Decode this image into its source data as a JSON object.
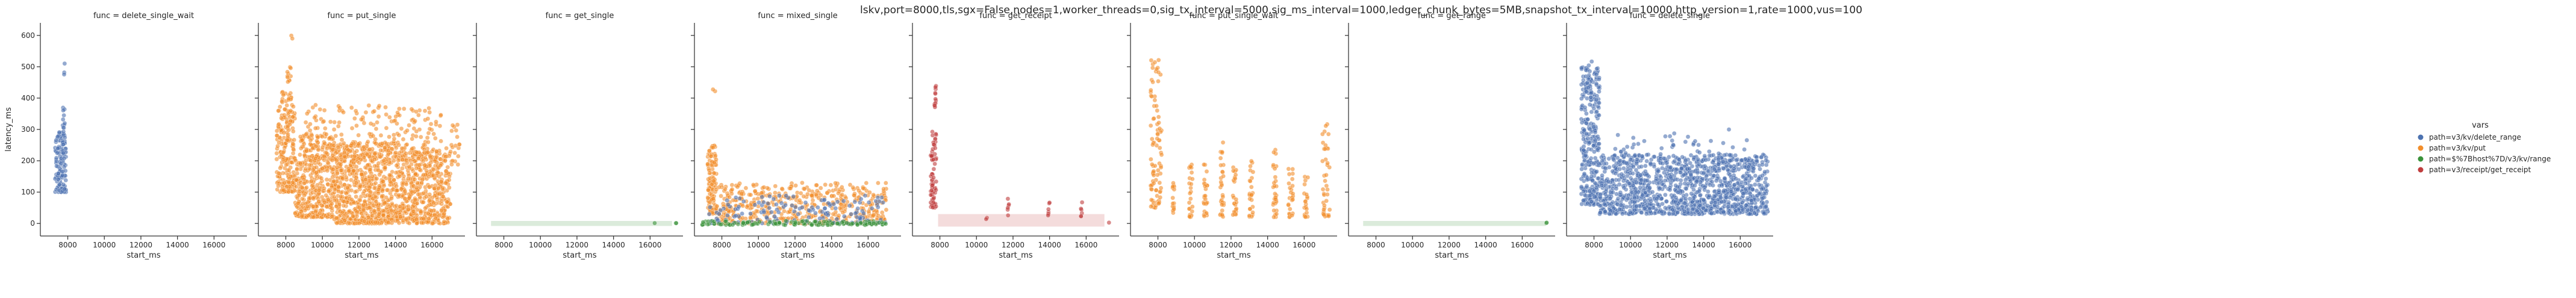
{
  "figure": {
    "suptitle": "lskv,port=8000,tls,sgx=False,nodes=1,worker_threads=0,sig_tx_interval=5000,sig_ms_interval=1000,ledger_chunk_bytes=5MB,snapshot_tx_interval=10000,http_version=1,rate=1000,vus=100"
  },
  "legend": {
    "title": "vars",
    "placement": "right",
    "entries": [
      {
        "label": "path=v3/kv/delete_range",
        "color": "#4c72b0"
      },
      {
        "label": "path=v3/kv/put",
        "color": "#f28e2b"
      },
      {
        "label": "path=$%7Bhost%7D/v3/kv/range",
        "color": "#3a923a"
      },
      {
        "label": "path=v3/receipt/get_receipt",
        "color": "#c03d3e"
      }
    ]
  },
  "chart_data": [
    {
      "type": "scatter",
      "title": "func = delete_single_wait",
      "xlabel": "start_ms",
      "ylabel": "latency_ms",
      "xlim": [
        6500,
        17800
      ],
      "ylim": [
        -40,
        640
      ],
      "xticks": [
        8000,
        10000,
        12000,
        14000,
        16000
      ],
      "yticks": [
        0,
        100,
        200,
        300,
        400,
        500,
        600
      ],
      "series": [
        {
          "color": "#4c72b0",
          "clusters": [
            {
              "x": [
                7300,
                7900
              ],
              "y": [
                100,
                300
              ],
              "n": 120
            },
            {
              "x": [
                7700,
                7850
              ],
              "y": [
                250,
                390
              ],
              "n": 25
            },
            {
              "x": [
                7780,
                7840
              ],
              "y": [
                470,
                520
              ],
              "n": 3
            }
          ]
        }
      ]
    },
    {
      "type": "scatter",
      "title": "func = put_single",
      "xlabel": "start_ms",
      "ylabel": "",
      "xlim": [
        6500,
        17800
      ],
      "ylim": [
        -40,
        640
      ],
      "xticks": [
        8000,
        10000,
        12000,
        14000,
        16000
      ],
      "yticks": [
        0,
        100,
        200,
        300,
        400,
        500,
        600
      ],
      "series": [
        {
          "color": "#f28e2b",
          "clusters": [
            {
              "x": [
                7500,
                8500
              ],
              "y": [
                100,
                420
              ],
              "n": 220
            },
            {
              "x": [
                8000,
                8300
              ],
              "y": [
                450,
                500
              ],
              "n": 10
            },
            {
              "x": [
                8300,
                8400
              ],
              "y": [
                590,
                610
              ],
              "n": 2
            },
            {
              "x": [
                8500,
                10500
              ],
              "y": [
                20,
                280
              ],
              "n": 350
            },
            {
              "x": [
                10500,
                14000
              ],
              "y": [
                0,
                260
              ],
              "n": 700
            },
            {
              "x": [
                9000,
                16500
              ],
              "y": [
                200,
                380
              ],
              "n": 260
            },
            {
              "x": [
                14000,
                17000
              ],
              "y": [
                0,
                240
              ],
              "n": 500
            },
            {
              "x": [
                17000,
                17500
              ],
              "y": [
                180,
                320
              ],
              "n": 20
            }
          ]
        }
      ]
    },
    {
      "type": "scatter",
      "title": "func = get_single",
      "xlabel": "start_ms",
      "ylabel": "",
      "xlim": [
        6500,
        17800
      ],
      "ylim": [
        -40,
        640
      ],
      "xticks": [
        8000,
        10000,
        12000,
        14000,
        16000
      ],
      "yticks": [
        0,
        100,
        200,
        300,
        400,
        500,
        600
      ],
      "series": [
        {
          "color": "#3a923a",
          "clusters": [
            {
              "x": [
                16200,
                16300
              ],
              "y": [
                0,
                2
              ],
              "n": 1
            },
            {
              "x": [
                17400,
                17500
              ],
              "y": [
                0,
                2
              ],
              "n": 2
            }
          ]
        }
      ],
      "band": {
        "color": "#3a923a",
        "x": [
          7300,
          17200
        ],
        "y": [
          -8,
          8
        ]
      }
    },
    {
      "type": "scatter",
      "title": "func = mixed_single",
      "xlabel": "start_ms",
      "ylabel": "",
      "xlim": [
        6500,
        17800
      ],
      "ylim": [
        -40,
        640
      ],
      "xticks": [
        8000,
        10000,
        12000,
        14000,
        16000
      ],
      "yticks": [
        0,
        100,
        200,
        300,
        400,
        500,
        600
      ],
      "series": [
        {
          "color": "#f28e2b",
          "clusters": [
            {
              "x": [
                7200,
                7700
              ],
              "y": [
                30,
                250
              ],
              "n": 120
            },
            {
              "x": [
                7500,
                7700
              ],
              "y": [
                400,
                470
              ],
              "n": 2
            },
            {
              "x": [
                7700,
                17000
              ],
              "y": [
                0,
                130
              ],
              "n": 500
            }
          ]
        },
        {
          "color": "#4c72b0",
          "clusters": [
            {
              "x": [
                7200,
                17000
              ],
              "y": [
                0,
                90
              ],
              "n": 160
            }
          ]
        },
        {
          "color": "#3a923a",
          "clusters": [
            {
              "x": [
                6900,
                17000
              ],
              "y": [
                -5,
                8
              ],
              "n": 130
            }
          ]
        }
      ]
    },
    {
      "type": "scatter",
      "title": "func = get_receipt",
      "xlabel": "start_ms",
      "ylabel": "",
      "xlim": [
        6500,
        17800
      ],
      "ylim": [
        -40,
        640
      ],
      "xticks": [
        8000,
        10000,
        12000,
        14000,
        16000
      ],
      "yticks": [
        0,
        100,
        200,
        300,
        400,
        500,
        600
      ],
      "series": [
        {
          "color": "#c03d3e",
          "clusters": [
            {
              "x": [
                7500,
                7800
              ],
              "y": [
                50,
                300
              ],
              "n": 70
            },
            {
              "x": [
                7700,
                7800
              ],
              "y": [
                370,
                440
              ],
              "n": 12
            },
            {
              "x": [
                10500,
                10600
              ],
              "y": [
                10,
                20
              ],
              "n": 2
            },
            {
              "x": [
                11700,
                11800
              ],
              "y": [
                20,
                80
              ],
              "n": 6
            },
            {
              "x": [
                13900,
                14000
              ],
              "y": [
                20,
                70
              ],
              "n": 6
            },
            {
              "x": [
                15700,
                15800
              ],
              "y": [
                20,
                70
              ],
              "n": 6
            },
            {
              "x": [
                17200,
                17300
              ],
              "y": [
                0,
                5
              ],
              "n": 1
            }
          ]
        }
      ],
      "band": {
        "color": "#c03d3e",
        "x": [
          7900,
          17000
        ],
        "y": [
          -10,
          30
        ]
      }
    },
    {
      "type": "scatter",
      "title": "func = put_single_wait",
      "xlabel": "start_ms",
      "ylabel": "",
      "xlim": [
        6500,
        17800
      ],
      "ylim": [
        -40,
        640
      ],
      "xticks": [
        8000,
        10000,
        12000,
        14000,
        16000
      ],
      "yticks": [
        0,
        100,
        200,
        300,
        400,
        500,
        600
      ],
      "series": [
        {
          "color": "#f28e2b",
          "clusters": [
            {
              "x": [
                7600,
                8200
              ],
              "y": [
                50,
                540
              ],
              "n": 90
            },
            {
              "x": [
                8800,
                8900
              ],
              "y": [
                20,
                140
              ],
              "n": 15
            },
            {
              "x": [
                9700,
                9900
              ],
              "y": [
                20,
                210
              ],
              "n": 25
            },
            {
              "x": [
                10500,
                10700
              ],
              "y": [
                20,
                200
              ],
              "n": 25
            },
            {
              "x": [
                11400,
                11600
              ],
              "y": [
                20,
                280
              ],
              "n": 30
            },
            {
              "x": [
                12100,
                12300
              ],
              "y": [
                20,
                200
              ],
              "n": 25
            },
            {
              "x": [
                13000,
                13200
              ],
              "y": [
                20,
                200
              ],
              "n": 25
            },
            {
              "x": [
                14300,
                14500
              ],
              "y": [
                20,
                270
              ],
              "n": 30
            },
            {
              "x": [
                15100,
                15400
              ],
              "y": [
                20,
                200
              ],
              "n": 25
            },
            {
              "x": [
                16000,
                16200
              ],
              "y": [
                20,
                170
              ],
              "n": 20
            },
            {
              "x": [
                17000,
                17400
              ],
              "y": [
                20,
                320
              ],
              "n": 40
            }
          ]
        }
      ]
    },
    {
      "type": "scatter",
      "title": "func = get_range",
      "xlabel": "start_ms",
      "ylabel": "",
      "xlim": [
        6500,
        17800
      ],
      "ylim": [
        -40,
        640
      ],
      "xticks": [
        8000,
        10000,
        12000,
        14000,
        16000
      ],
      "yticks": [
        0,
        100,
        200,
        300,
        400,
        500,
        600
      ],
      "series": [
        {
          "color": "#3a923a",
          "clusters": [
            {
              "x": [
                17300,
                17400
              ],
              "y": [
                0,
                3
              ],
              "n": 2
            }
          ]
        }
      ],
      "band": {
        "color": "#3a923a",
        "x": [
          7300,
          17300
        ],
        "y": [
          -8,
          8
        ]
      }
    },
    {
      "type": "scatter",
      "title": "func = delete_single",
      "xlabel": "start_ms",
      "ylabel": "",
      "xlim": [
        6500,
        17800
      ],
      "ylim": [
        -40,
        640
      ],
      "xticks": [
        8000,
        10000,
        12000,
        14000,
        16000
      ],
      "yticks": [
        0,
        100,
        200,
        300,
        400,
        500,
        600
      ],
      "series": [
        {
          "color": "#4c72b0",
          "clusters": [
            {
              "x": [
                7300,
                8300
              ],
              "y": [
                60,
                500
              ],
              "n": 300
            },
            {
              "x": [
                7500,
                7900
              ],
              "y": [
                400,
                520
              ],
              "n": 20
            },
            {
              "x": [
                8300,
                17500
              ],
              "y": [
                30,
                220
              ],
              "n": 1300
            },
            {
              "x": [
                9000,
                16500
              ],
              "y": [
                200,
                300
              ],
              "n": 60
            }
          ]
        }
      ]
    }
  ]
}
